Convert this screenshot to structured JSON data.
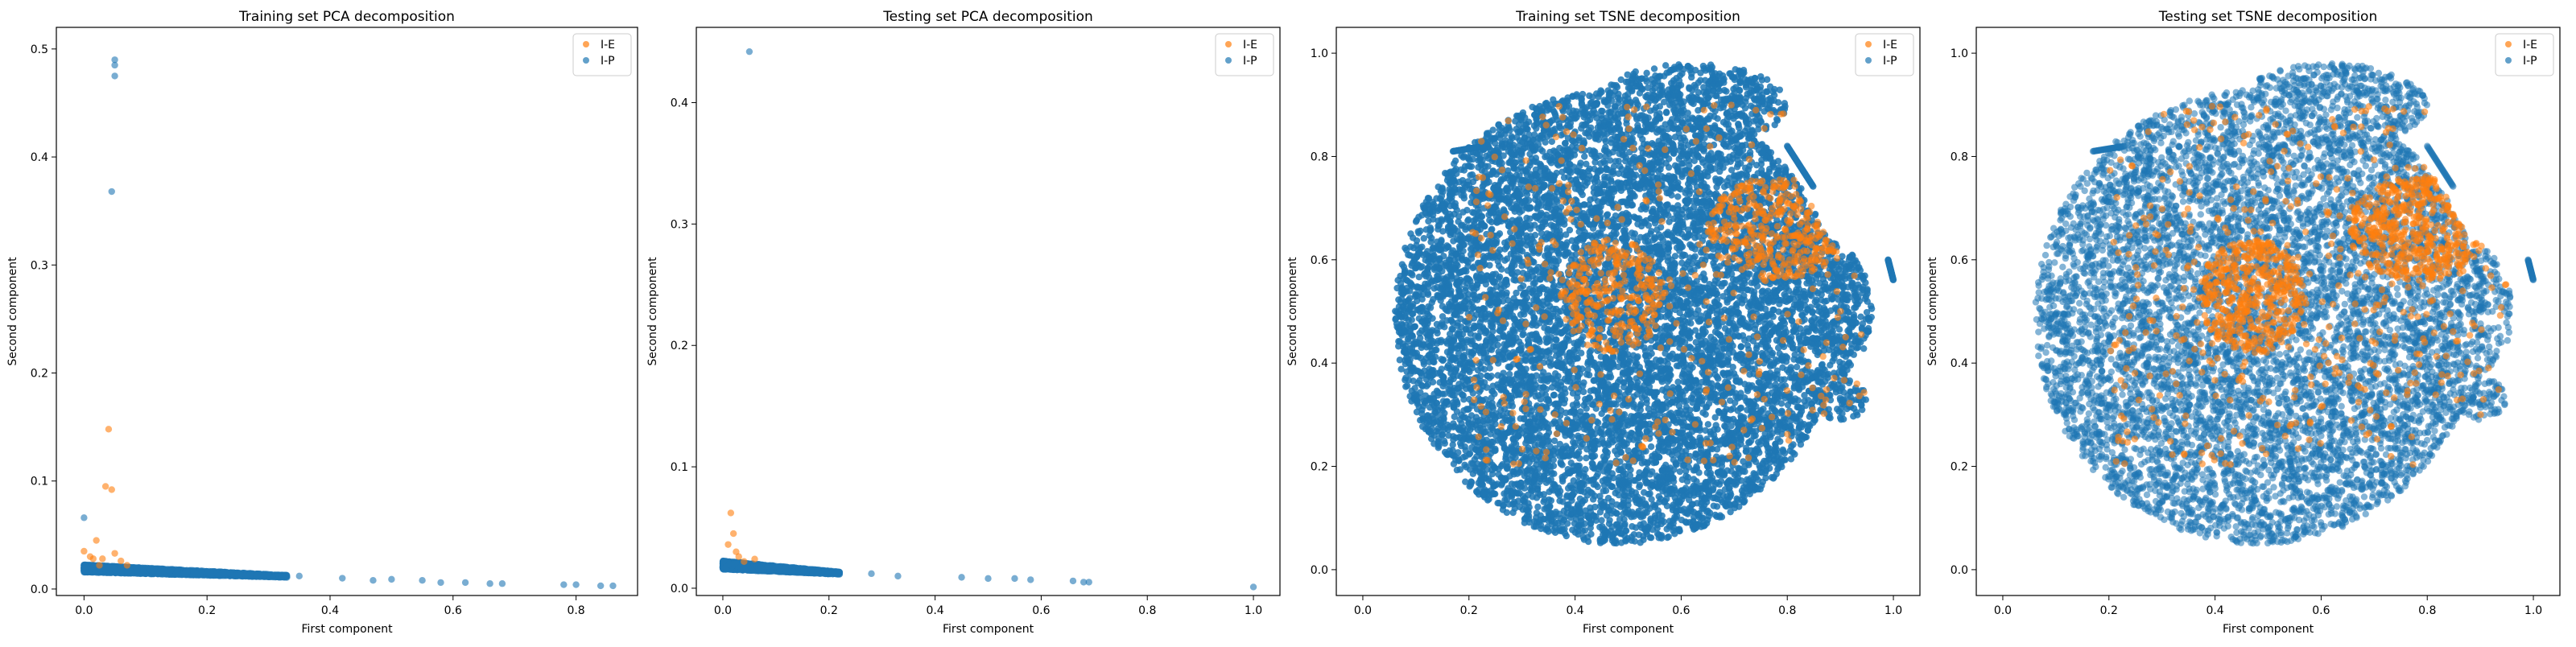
{
  "chart_data": [
    {
      "type": "scatter",
      "title": "Training set PCA decomposition",
      "xlabel": "First component",
      "ylabel": "Second component",
      "xlim": [
        -0.045,
        0.9
      ],
      "ylim": [
        -0.006,
        0.52
      ],
      "xticks": [
        "0.0",
        "0.2",
        "0.4",
        "0.6",
        "0.8"
      ],
      "yticks": [
        "0.0",
        "0.1",
        "0.2",
        "0.3",
        "0.4",
        "0.5"
      ],
      "legend": "top-right",
      "series": [
        {
          "name": "I-E",
          "color": "#ff7f0e",
          "points": [
            [
              0.0,
              0.035
            ],
            [
              0.01,
              0.03
            ],
            [
              0.02,
              0.045
            ],
            [
              0.035,
              0.095
            ],
            [
              0.04,
              0.148
            ],
            [
              0.045,
              0.092
            ],
            [
              0.05,
              0.033
            ],
            [
              0.06,
              0.026
            ],
            [
              0.03,
              0.028
            ],
            [
              0.07,
              0.022
            ],
            [
              0.015,
              0.028
            ],
            [
              0.025,
              0.022
            ]
          ]
        },
        {
          "name": "I-P",
          "color": "#1f77b4",
          "points": [
            [
              0.0,
              0.066
            ],
            [
              0.045,
              0.368
            ],
            [
              0.05,
              0.475
            ],
            [
              0.05,
              0.485
            ],
            [
              0.05,
              0.49
            ],
            [
              0.0,
              0.02
            ],
            [
              0.35,
              0.012
            ],
            [
              0.42,
              0.01
            ],
            [
              0.47,
              0.008
            ],
            [
              0.5,
              0.009
            ],
            [
              0.55,
              0.008
            ],
            [
              0.58,
              0.006
            ],
            [
              0.62,
              0.006
            ],
            [
              0.66,
              0.005
            ],
            [
              0.68,
              0.005
            ],
            [
              0.78,
              0.004
            ],
            [
              0.8,
              0.004
            ],
            [
              0.84,
              0.003
            ],
            [
              0.86,
              0.003
            ]
          ]
        }
      ]
    },
    {
      "type": "scatter",
      "title": "Testing set PCA decomposition",
      "xlabel": "First component",
      "ylabel": "Second component",
      "xlim": [
        -0.05,
        1.05
      ],
      "ylim": [
        -0.006,
        0.462
      ],
      "xticks": [
        "0.0",
        "0.2",
        "0.4",
        "0.6",
        "0.8",
        "1.0"
      ],
      "yticks": [
        "0.0",
        "0.1",
        "0.2",
        "0.3",
        "0.4"
      ],
      "legend": "top-right",
      "series": [
        {
          "name": "I-E",
          "color": "#ff7f0e",
          "points": [
            [
              0.01,
              0.036
            ],
            [
              0.015,
              0.062
            ],
            [
              0.02,
              0.045
            ],
            [
              0.025,
              0.03
            ],
            [
              0.03,
              0.026
            ],
            [
              0.04,
              0.022
            ],
            [
              0.06,
              0.024
            ]
          ]
        },
        {
          "name": "I-P",
          "color": "#1f77b4",
          "points": [
            [
              0.05,
              0.442
            ],
            [
              0.28,
              0.012
            ],
            [
              0.33,
              0.01
            ],
            [
              0.45,
              0.009
            ],
            [
              0.5,
              0.008
            ],
            [
              0.55,
              0.008
            ],
            [
              0.58,
              0.007
            ],
            [
              0.66,
              0.006
            ],
            [
              0.68,
              0.005
            ],
            [
              0.69,
              0.005
            ],
            [
              1.0,
              0.001
            ]
          ]
        }
      ]
    },
    {
      "type": "scatter",
      "title": "Training set TSNE decomposition",
      "xlabel": "First component",
      "ylabel": "Second component",
      "xlim": [
        -0.05,
        1.05
      ],
      "ylim": [
        -0.05,
        1.05
      ],
      "xticks": [
        "0.0",
        "0.2",
        "0.4",
        "0.6",
        "0.8",
        "1.0"
      ],
      "yticks": [
        "0.0",
        "0.2",
        "0.4",
        "0.6",
        "0.8",
        "1.0"
      ],
      "legend": "top-right",
      "series": [
        {
          "name": "I-E",
          "color": "#ff7f0e"
        },
        {
          "name": "I-P",
          "color": "#1f77b4"
        }
      ]
    },
    {
      "type": "scatter",
      "title": "Testing set TSNE decomposition",
      "xlabel": "First component",
      "ylabel": "Second component",
      "xlim": [
        -0.05,
        1.05
      ],
      "ylim": [
        -0.05,
        1.05
      ],
      "xticks": [
        "0.0",
        "0.2",
        "0.4",
        "0.6",
        "0.8",
        "1.0"
      ],
      "yticks": [
        "0.0",
        "0.2",
        "0.4",
        "0.6",
        "0.8",
        "1.0"
      ],
      "legend": "top-right",
      "series": [
        {
          "name": "I-E",
          "color": "#ff7f0e"
        },
        {
          "name": "I-P",
          "color": "#1f77b4"
        }
      ]
    }
  ]
}
